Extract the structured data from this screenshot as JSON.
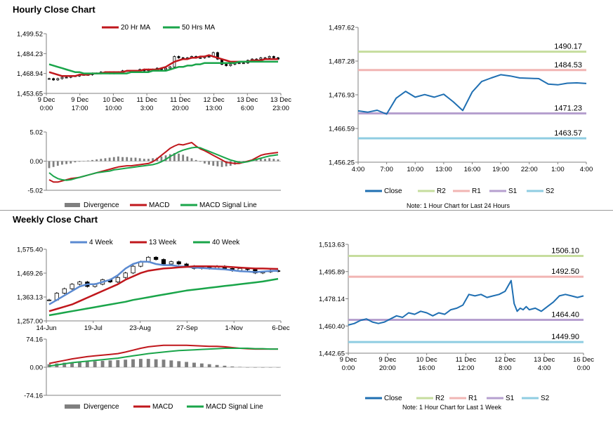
{
  "colors": {
    "ma_red": "#c0171c",
    "ma_green": "#1aa54a",
    "divergence": "#7f7f7f",
    "close_blue": "#1f6fb2",
    "week4_blue": "#5b8ad1",
    "r2": "#c6dd9e",
    "r1": "#f1b5b3",
    "s1": "#b6a0cf",
    "s2": "#8fcde2"
  },
  "sections": {
    "hourly_title": "Hourly Close Chart",
    "weekly_title": "Weekly Close Chart"
  },
  "notes": {
    "hourly": "Note: 1 Hour Chart for Last 24 Hours",
    "weekly": "Note: 1 Hour Chart for Last 1 Week"
  },
  "chart_data": [
    {
      "id": "hourly_price",
      "type": "candlestick_line",
      "title": "",
      "legend": [
        "20 Hr MA",
        "50 Hrs MA"
      ],
      "y_ticks": [
        "1,499.52",
        "1,484.23",
        "1,468.94",
        "1,453.65"
      ],
      "ylim": [
        1453.65,
        1499.52
      ],
      "x_ticks": [
        [
          "9 Dec",
          "0:00"
        ],
        [
          "9 Dec",
          "17:00"
        ],
        [
          "10 Dec",
          "10:00"
        ],
        [
          "11 Dec",
          "3:00"
        ],
        [
          "11 Dec",
          "20:00"
        ],
        [
          "12 Dec",
          "13:00"
        ],
        [
          "13 Dec",
          "6:00"
        ],
        [
          "13 Dec",
          "23:00"
        ]
      ],
      "close": [
        1465,
        1464,
        1465,
        1466,
        1466,
        1467,
        1467,
        1468,
        1468,
        1468,
        1469,
        1469,
        1470,
        1470,
        1469,
        1470,
        1470,
        1471,
        1471,
        1471,
        1471,
        1472,
        1471,
        1472,
        1472,
        1473,
        1472,
        1473,
        1474,
        1482,
        1481,
        1480,
        1481,
        1482,
        1481,
        1481,
        1482,
        1482,
        1485,
        1480,
        1476,
        1475,
        1476,
        1477,
        1477,
        1477,
        1479,
        1480,
        1480,
        1481,
        1481,
        1482,
        1481,
        1480
      ],
      "ma20": [
        1470,
        1469,
        1468,
        1467,
        1467,
        1467,
        1467,
        1468,
        1468,
        1468,
        1469,
        1469,
        1469,
        1470,
        1470,
        1470,
        1470,
        1470,
        1471,
        1471,
        1471,
        1471,
        1472,
        1472,
        1472,
        1472,
        1473,
        1474,
        1476,
        1478,
        1479,
        1480,
        1480,
        1481,
        1481,
        1482,
        1482,
        1483,
        1482,
        1481,
        1480,
        1479,
        1478,
        1478,
        1478,
        1478,
        1478,
        1479,
        1479,
        1479,
        1480,
        1480,
        1480,
        1480
      ],
      "ma50": [
        1476,
        1475,
        1474,
        1473,
        1472,
        1471,
        1470,
        1470,
        1469,
        1469,
        1469,
        1469,
        1469,
        1469,
        1469,
        1469,
        1469,
        1469,
        1469,
        1470,
        1470,
        1470,
        1470,
        1470,
        1471,
        1471,
        1471,
        1471,
        1472,
        1473,
        1474,
        1474,
        1475,
        1475,
        1476,
        1476,
        1477,
        1477,
        1477,
        1477,
        1477,
        1477,
        1477,
        1477,
        1478,
        1478,
        1478,
        1478,
        1478,
        1478,
        1478,
        1478,
        1478,
        1478
      ]
    },
    {
      "id": "hourly_macd",
      "type": "macd",
      "legend": [
        "Divergence",
        "MACD",
        "MACD Signal Line"
      ],
      "y_ticks": [
        "5.02",
        "0.00",
        "-5.02"
      ],
      "ylim": [
        -5.02,
        5.02
      ],
      "divergence": [
        -1.2,
        -1.0,
        -0.8,
        -0.6,
        -0.5,
        -0.4,
        -0.2,
        -0.1,
        0.0,
        0.1,
        0.2,
        0.3,
        0.4,
        0.5,
        0.6,
        0.7,
        0.8,
        0.7,
        0.7,
        0.6,
        0.6,
        0.5,
        0.4,
        0.4,
        0.5,
        0.6,
        0.8,
        1.0,
        1.2,
        1.4,
        1.3,
        1.1,
        0.8,
        0.5,
        0.2,
        -0.1,
        -0.4,
        -0.6,
        -0.8,
        -0.9,
        -1.0,
        -0.9,
        -0.8,
        -0.6,
        -0.4,
        -0.2,
        0.0,
        0.2,
        0.3,
        0.4,
        0.4,
        0.5,
        0.4,
        0.3
      ],
      "macd": [
        -3.2,
        -3.6,
        -3.6,
        -3.4,
        -3.2,
        -3.0,
        -2.9,
        -2.8,
        -2.6,
        -2.4,
        -2.2,
        -2.0,
        -1.8,
        -1.6,
        -1.4,
        -1.2,
        -1.0,
        -0.9,
        -0.8,
        -0.8,
        -0.7,
        -0.6,
        -0.5,
        -0.4,
        -0.1,
        0.4,
        1.0,
        1.6,
        2.2,
        2.6,
        2.9,
        2.8,
        3.0,
        3.2,
        2.6,
        2.1,
        1.8,
        1.4,
        1.0,
        0.6,
        0.2,
        -0.2,
        -0.3,
        -0.4,
        -0.4,
        -0.2,
        0.0,
        0.2,
        0.6,
        1.0,
        1.2,
        1.3,
        1.4,
        1.5
      ],
      "signal": [
        -2.0,
        -2.6,
        -3.0,
        -3.2,
        -3.3,
        -3.2,
        -3.0,
        -2.8,
        -2.6,
        -2.4,
        -2.2,
        -2.0,
        -1.9,
        -1.8,
        -1.7,
        -1.5,
        -1.4,
        -1.3,
        -1.2,
        -1.1,
        -1.0,
        -0.9,
        -0.8,
        -0.7,
        -0.6,
        -0.4,
        -0.1,
        0.3,
        0.8,
        1.2,
        1.6,
        1.9,
        2.1,
        2.3,
        2.4,
        2.3,
        2.0,
        1.7,
        1.4,
        1.1,
        0.8,
        0.5,
        0.2,
        0.0,
        -0.2,
        -0.2,
        -0.1,
        0.1,
        0.3,
        0.5,
        0.7,
        0.9,
        1.0,
        1.1
      ]
    },
    {
      "id": "hourly_levels",
      "type": "line_with_levels",
      "legend": [
        "Close",
        "R2",
        "R1",
        "S1",
        "S2"
      ],
      "y_ticks": [
        "1,497.62",
        "1,487.28",
        "1,476.93",
        "1,466.59",
        "1,456.25"
      ],
      "ylim": [
        1456.25,
        1497.62
      ],
      "x_ticks": [
        "4:00",
        "7:00",
        "10:00",
        "13:00",
        "16:00",
        "19:00",
        "22:00",
        "1:00",
        "4:00"
      ],
      "xlim": [
        0,
        24
      ],
      "x": [
        0,
        1,
        2,
        3,
        4,
        5,
        6,
        7,
        8,
        9,
        10,
        11,
        12,
        13,
        14,
        15,
        16,
        17,
        18,
        19,
        20,
        21,
        22,
        23,
        24
      ],
      "values": [
        1472.0,
        1471.6,
        1472.2,
        1471.0,
        1475.9,
        1478.0,
        1476.2,
        1477.0,
        1476.2,
        1477.1,
        1474.8,
        1472.1,
        1477.8,
        1481.0,
        1482.1,
        1483.1,
        1482.7,
        1482.1,
        1482.0,
        1481.9,
        1480.2,
        1480.0,
        1480.5,
        1480.6,
        1480.4
      ],
      "levels": {
        "R2": 1490.17,
        "R1": 1484.53,
        "S1": 1471.23,
        "S2": 1463.57
      },
      "level_labels": {
        "R2": "1490.17",
        "R1": "1484.53",
        "S1": "1471.23",
        "S2": "1463.57"
      }
    },
    {
      "id": "weekly_price",
      "type": "candlestick_line",
      "legend": [
        "4 Week",
        "13 Week",
        "40 Week"
      ],
      "y_ticks": [
        "1,575.40",
        "1,469.26",
        "1,363.13",
        "1,257.00"
      ],
      "ylim": [
        1257.0,
        1575.4
      ],
      "x_ticks": [
        "14-Jun",
        "19-Jul",
        "23-Aug",
        "27-Sep",
        "1-Nov",
        "6-Dec"
      ],
      "close": [
        1350,
        1380,
        1400,
        1420,
        1430,
        1410,
        1420,
        1440,
        1430,
        1450,
        1470,
        1500,
        1520,
        1540,
        1530,
        1510,
        1520,
        1510,
        1500,
        1490,
        1495,
        1490,
        1500,
        1490,
        1480,
        1490,
        1485,
        1470,
        1475,
        1480,
        1478
      ],
      "w4": [
        1330,
        1350,
        1370,
        1390,
        1410,
        1420,
        1420,
        1430,
        1440,
        1460,
        1490,
        1510,
        1520,
        1520,
        1510,
        1505,
        1505,
        1500,
        1498,
        1494,
        1492,
        1490,
        1488,
        1486,
        1482,
        1478,
        1476,
        1474,
        1476,
        1479,
        1480
      ],
      "w13": [
        1300,
        1310,
        1320,
        1330,
        1345,
        1360,
        1375,
        1390,
        1405,
        1420,
        1440,
        1455,
        1470,
        1480,
        1485,
        1490,
        1492,
        1495,
        1497,
        1500,
        1500,
        1500,
        1499,
        1498,
        1496,
        1494,
        1492,
        1490,
        1490,
        1489,
        1488
      ],
      "w40": [
        1282,
        1288,
        1294,
        1300,
        1306,
        1312,
        1318,
        1324,
        1330,
        1336,
        1342,
        1350,
        1356,
        1362,
        1368,
        1374,
        1380,
        1386,
        1392,
        1396,
        1400,
        1404,
        1408,
        1412,
        1416,
        1420,
        1424,
        1428,
        1432,
        1438,
        1444
      ]
    },
    {
      "id": "weekly_macd",
      "type": "macd",
      "legend": [
        "Divergence",
        "MACD",
        "MACD Signal Line"
      ],
      "y_ticks": [
        "74.16",
        "0.00",
        "-74.16"
      ],
      "ylim": [
        -74.16,
        74.16
      ],
      "divergence": [
        8,
        10,
        12,
        13,
        14,
        15,
        16,
        17,
        18,
        19,
        20,
        21,
        22,
        22,
        21,
        20,
        18,
        16,
        14,
        12,
        10,
        8,
        6,
        4,
        2,
        1,
        0,
        -1,
        -1,
        0,
        0
      ],
      "macd": [
        10,
        14,
        18,
        22,
        25,
        28,
        30,
        32,
        34,
        36,
        40,
        45,
        50,
        54,
        56,
        58,
        58,
        58,
        58,
        57,
        56,
        55,
        55,
        54,
        52,
        50,
        49,
        48,
        48,
        48,
        48
      ],
      "signal": [
        3,
        6,
        9,
        12,
        14,
        16,
        18,
        20,
        22,
        24,
        27,
        30,
        33,
        36,
        38,
        40,
        42,
        44,
        45,
        46,
        47,
        48,
        49,
        50,
        50,
        50,
        50,
        49,
        49,
        48,
        48
      ]
    },
    {
      "id": "weekly_levels",
      "type": "line_with_levels",
      "legend": [
        "Close",
        "R2",
        "R1",
        "S1",
        "S2"
      ],
      "y_ticks": [
        "1,513.63",
        "1,495.89",
        "1,478.14",
        "1,460.40",
        "1,442.65"
      ],
      "ylim": [
        1442.65,
        1513.63
      ],
      "x_ticks": [
        [
          "9 Dec",
          "0:00"
        ],
        [
          "9 Dec",
          "20:00"
        ],
        [
          "10 Dec",
          "16:00"
        ],
        [
          "11 Dec",
          "12:00"
        ],
        [
          "12 Dec",
          "8:00"
        ],
        [
          "13 Dec",
          "4:00"
        ],
        [
          "16 Dec",
          "0:00"
        ]
      ],
      "xlim": [
        0,
        156
      ],
      "x": [
        0,
        4,
        8,
        12,
        16,
        20,
        24,
        28,
        32,
        36,
        40,
        44,
        48,
        52,
        56,
        60,
        64,
        68,
        72,
        76,
        80,
        84,
        88,
        92,
        96,
        100,
        104,
        108,
        110,
        112,
        114,
        116,
        118,
        120,
        124,
        128,
        132,
        136,
        140,
        144,
        148,
        152,
        156
      ],
      "values": [
        1461,
        1462,
        1464,
        1465,
        1463,
        1462,
        1463,
        1465,
        1467,
        1466,
        1469,
        1468,
        1470,
        1469,
        1467,
        1469,
        1468,
        1471,
        1472,
        1474,
        1481,
        1480,
        1481,
        1479,
        1480,
        1481,
        1483,
        1490,
        1475,
        1470,
        1472,
        1471,
        1473,
        1471,
        1472,
        1470,
        1473,
        1476,
        1480,
        1481,
        1480,
        1479,
        1480
      ],
      "levels": {
        "R2": 1506.1,
        "R1": 1492.5,
        "S1": 1464.4,
        "S2": 1449.9
      },
      "level_labels": {
        "R2": "1506.10",
        "R1": "1492.50",
        "S1": "1464.40",
        "S2": "1449.90"
      }
    }
  ]
}
